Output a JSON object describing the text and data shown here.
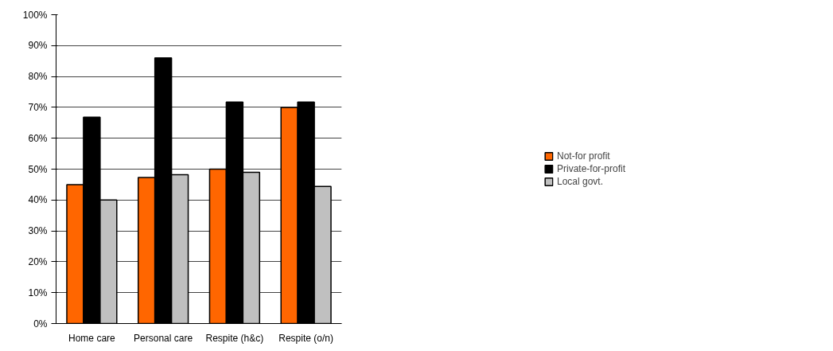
{
  "chart_data": {
    "type": "bar",
    "categories": [
      "Home care",
      "Personal care",
      "Respite (h&c)",
      "Respite (o/n)"
    ],
    "series": [
      {
        "name": "Not-for profit",
        "color": "#ff6600",
        "values": [
          45,
          47.3,
          50,
          70
        ]
      },
      {
        "name": "Private-for-profit",
        "color": "#000000",
        "values": [
          66.8,
          86,
          71.7,
          71.7
        ]
      },
      {
        "name": "Local govt.",
        "color": "#c0c0c0",
        "values": [
          40,
          48.2,
          49,
          44.4
        ]
      }
    ],
    "ylim": [
      0,
      100
    ],
    "yticks": [
      {
        "value": 0,
        "label": "0%"
      },
      {
        "value": 10,
        "label": "10%"
      },
      {
        "value": 20,
        "label": "20%"
      },
      {
        "value": 30,
        "label": "30%"
      },
      {
        "value": 40,
        "label": "40%"
      },
      {
        "value": 50,
        "label": "50%"
      },
      {
        "value": 60,
        "label": "60%"
      },
      {
        "value": 70,
        "label": "70%"
      },
      {
        "value": 80,
        "label": "80%"
      },
      {
        "value": 90,
        "label": "90%"
      },
      {
        "value": 100,
        "label": "100%"
      }
    ],
    "grid": "y",
    "legend": "right"
  }
}
